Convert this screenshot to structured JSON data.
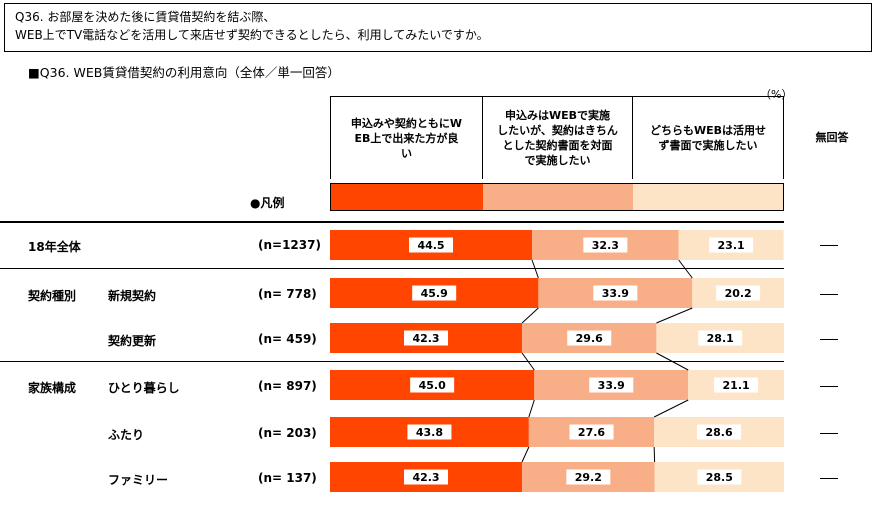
{
  "question": {
    "line1": "Q36. お部屋を決めた後に賃貸借契約を結ぶ際、",
    "line2": "WEB上でTV電話などを活用して来店せず契約できるとしたら、利用してみたいですか。"
  },
  "subtitle": "■Q36. WEB賃貸借契約の利用意向（全体／単一回答）",
  "unit_label": "（%）",
  "legend_label": "●凡例",
  "colors": {
    "seg1": "#FF4500",
    "seg2": "#F8AF87",
    "seg3": "#FDE4C6",
    "line": "#000000"
  },
  "chart_data": {
    "type": "bar",
    "stacked": true,
    "orientation": "horizontal",
    "xlim": [
      0,
      100
    ],
    "series": [
      {
        "name_lines": [
          "申込みや契約ともにW",
          "EB上で出来た方が良",
          "い"
        ]
      },
      {
        "name_lines": [
          "申込みはWEBで実施",
          "したいが、契約はきちん",
          "とした契約書面を対面",
          "で実施したい"
        ]
      },
      {
        "name_lines": [
          "どちらもWEBは活用せ",
          "ず書面で実施したい"
        ]
      }
    ],
    "no_answer_header": "無回答",
    "rows": [
      {
        "group": "18年全体",
        "label": "",
        "n": "(n=1237)",
        "values": [
          44.5,
          32.3,
          23.1
        ],
        "no_answer": "—"
      },
      {
        "group": "契約種別",
        "label": "新規契約",
        "n": "(n=  778)",
        "values": [
          45.9,
          33.9,
          20.2
        ],
        "no_answer": "—"
      },
      {
        "group": "",
        "label": "契約更新",
        "n": "(n=  459)",
        "values": [
          42.3,
          29.6,
          28.1
        ],
        "no_answer": "—"
      },
      {
        "group": "家族構成",
        "label": "ひとり暮らし",
        "n": "(n=  897)",
        "values": [
          45.0,
          33.9,
          21.1
        ],
        "no_answer": "—"
      },
      {
        "group": "",
        "label": "ふたり",
        "n": "(n=  203)",
        "values": [
          43.8,
          27.6,
          28.6
        ],
        "no_answer": "—"
      },
      {
        "group": "",
        "label": "ファミリー",
        "n": "(n=  137)",
        "values": [
          42.3,
          29.2,
          28.5
        ],
        "no_answer": "—"
      }
    ]
  }
}
